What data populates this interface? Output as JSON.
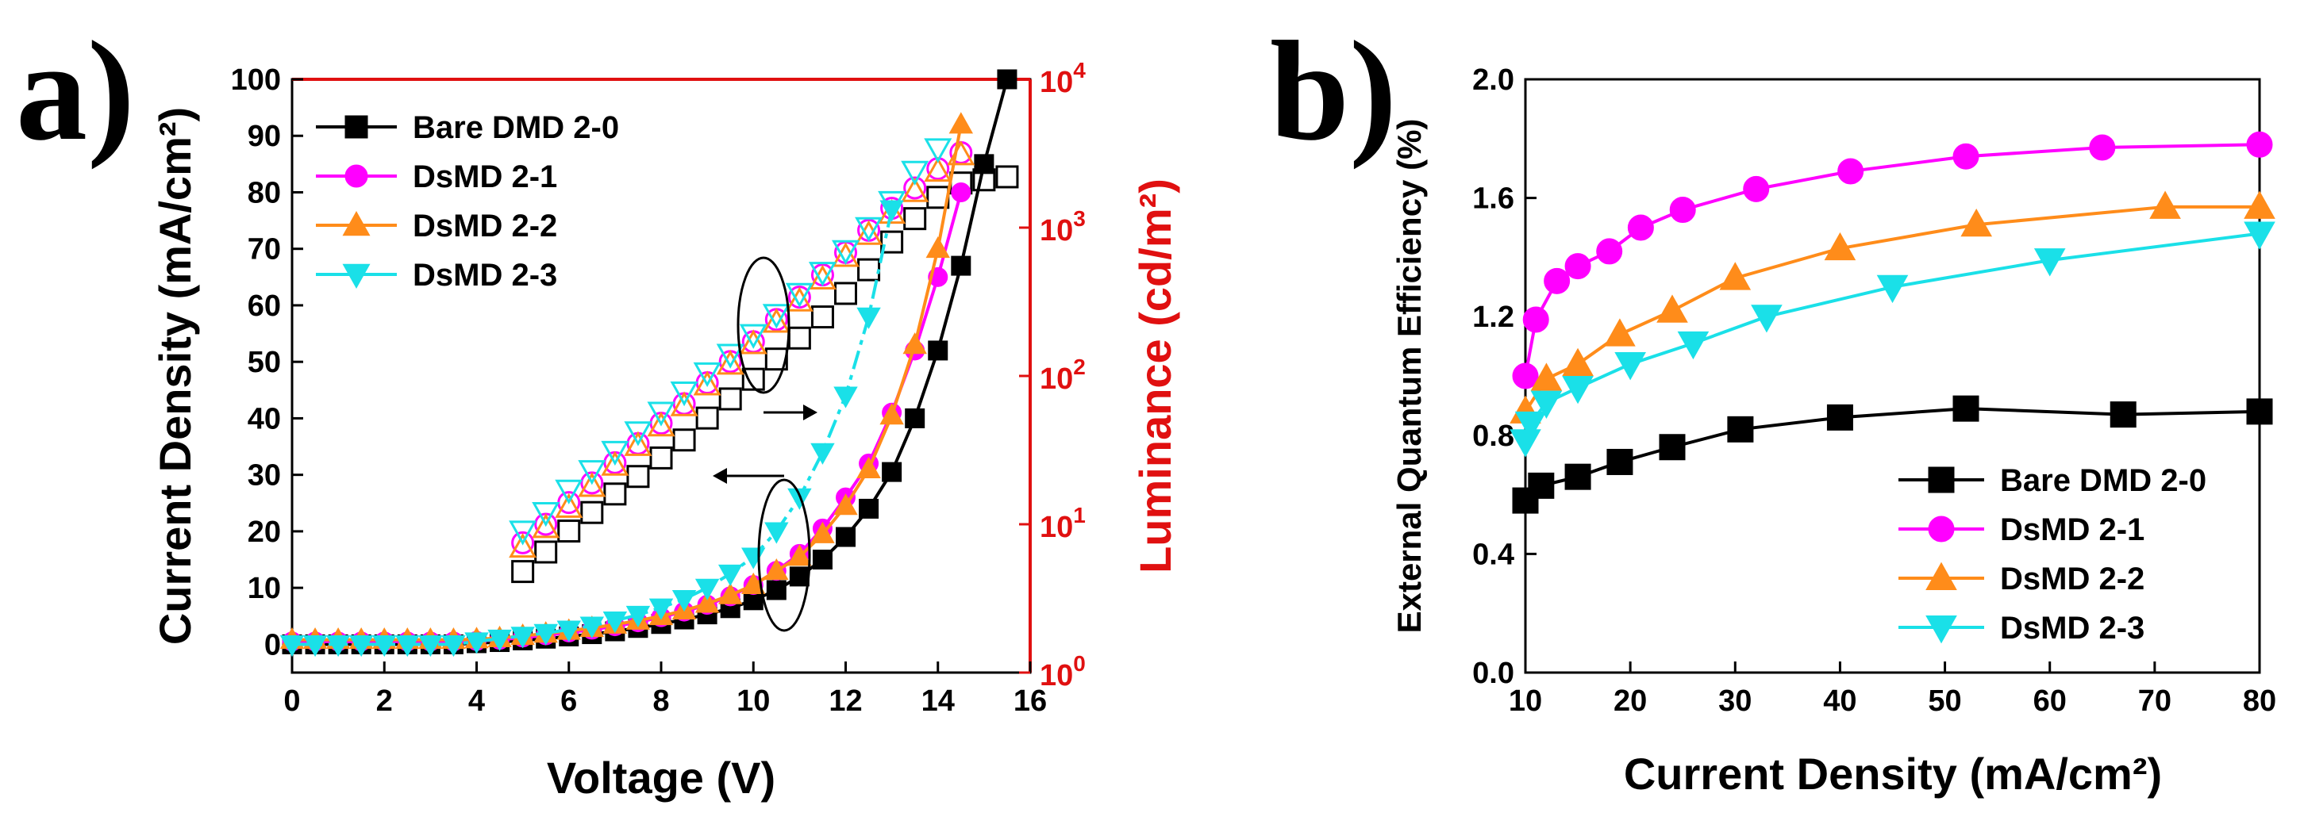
{
  "chart_data": [
    {
      "panel_label": "a)",
      "type": "scatter",
      "xlabel": "Voltage (V)",
      "ylabel_left": "Current Density (mA/cm²)",
      "ylabel_right": "Luminance (cd/m²)",
      "xlim": [
        0,
        16
      ],
      "ylim_left": [
        -5,
        100
      ],
      "ylim_right_log10": [
        0,
        4
      ],
      "x_ticks": [
        "0",
        "2",
        "4",
        "6",
        "8",
        "10",
        "12",
        "14",
        "16"
      ],
      "y_left_ticks": [
        "0",
        "10",
        "20",
        "30",
        "40",
        "50",
        "60",
        "70",
        "80",
        "90",
        "100"
      ],
      "y_right_ticks": [
        {
          "base": "10",
          "exp": "0"
        },
        {
          "base": "10",
          "exp": "1"
        },
        {
          "base": "10",
          "exp": "2"
        },
        {
          "base": "10",
          "exp": "3"
        },
        {
          "base": "10",
          "exp": "4"
        }
      ],
      "legend": [
        "Bare DMD 2-0",
        "DsMD 2-1",
        "DsMD 2-2",
        "DsMD 2-3"
      ],
      "legend_position": "top-left",
      "annotations": [
        "circle around luminance curves with arrow pointing to right axis",
        "circle around current density curves with arrow pointing to left axis"
      ],
      "series": [
        {
          "name": "Bare DMD 2-0",
          "color": "#000000",
          "marker": "square",
          "line": "solid",
          "current_density": {
            "x": [
              0,
              0.5,
              1,
              1.5,
              2,
              2.5,
              3,
              3.5,
              4,
              4.5,
              5,
              5.5,
              6,
              6.5,
              7,
              7.5,
              8,
              8.5,
              9,
              9.5,
              10,
              10.5,
              11,
              11.5,
              12,
              12.5,
              13,
              13.5,
              14,
              14.5,
              15,
              15.5
            ],
            "y": [
              0,
              0,
              0,
              0,
              0,
              0,
              0,
              0,
              0.2,
              0.4,
              0.7,
              1,
              1.4,
              1.8,
              2.3,
              2.9,
              3.6,
              4.4,
              5.3,
              6.4,
              7.8,
              9.6,
              12,
              15,
              19,
              24,
              30.5,
              40,
              52,
              67,
              85,
              100
            ]
          },
          "luminance": {
            "x": [
              5,
              5.5,
              6,
              6.5,
              7,
              7.5,
              8,
              8.5,
              9,
              9.5,
              10,
              10.5,
              11,
              11.5,
              12,
              12.5,
              13,
              13.5,
              14,
              14.5,
              15,
              15.5
            ],
            "y": [
              4.8,
              6.5,
              9,
              12,
              16,
              21,
              28,
              37,
              52,
              70,
              95,
              130,
              180,
              250,
              360,
              520,
              800,
              1150,
              1600,
              2000,
              2100,
              2200
            ]
          }
        },
        {
          "name": "DsMD 2-1",
          "color": "#ff00ff",
          "marker": "circle",
          "line": "solid",
          "current_density": {
            "x": [
              0,
              0.5,
              1,
              1.5,
              2,
              2.5,
              3,
              3.5,
              4,
              4.5,
              5,
              5.5,
              6,
              6.5,
              7,
              7.5,
              8,
              8.5,
              9,
              9.5,
              10,
              10.5,
              11,
              11.5,
              12,
              12.5,
              13,
              13.5,
              14,
              14.5
            ],
            "y": [
              0.5,
              0.5,
              0.5,
              0.5,
              0.5,
              0.5,
              0.5,
              0.5,
              0.6,
              0.8,
              1.2,
              1.6,
              2.1,
              2.6,
              3.2,
              3.9,
              4.8,
              5.8,
              7,
              8.5,
              10.5,
              13,
              16,
              20.5,
              26,
              32,
              41,
              52,
              65,
              80
            ]
          },
          "luminance": {
            "x": [
              5,
              5.5,
              6,
              6.5,
              7,
              7.5,
              8,
              8.5,
              9,
              9.5,
              10,
              10.5,
              11,
              11.5,
              12,
              12.5,
              13,
              13.5,
              14,
              14.5
            ],
            "y": [
              7.5,
              10,
              14,
              19,
              26,
              35,
              48,
              65,
              90,
              125,
              170,
              240,
              340,
              480,
              680,
              960,
              1350,
              1850,
              2500,
              3200
            ]
          }
        },
        {
          "name": "DsMD 2-2",
          "color": "#ff8c1a",
          "marker": "triangle-up",
          "line": "solid",
          "current_density": {
            "x": [
              0,
              0.5,
              1,
              1.5,
              2,
              2.5,
              3,
              3.5,
              4,
              4.5,
              5,
              5.5,
              6,
              6.5,
              7,
              7.5,
              8,
              8.5,
              9,
              9.5,
              10,
              10.5,
              11,
              11.5,
              12,
              12.5,
              13,
              13.5,
              14,
              14.5
            ],
            "y": [
              0.8,
              0.8,
              0.8,
              0.8,
              0.8,
              0.8,
              0.8,
              0.8,
              0.9,
              1.1,
              1.5,
              1.9,
              2.4,
              2.9,
              3.5,
              4.2,
              5,
              6,
              7.2,
              8.7,
              10.5,
              13,
              15.5,
              19.5,
              24.5,
              31,
              40.5,
              53,
              70,
              92
            ]
          },
          "luminance": {
            "x": [
              5,
              5.5,
              6,
              6.5,
              7,
              7.5,
              8,
              8.5,
              9,
              9.5,
              10,
              10.5,
              11,
              11.5,
              12,
              12.5,
              13,
              13.5,
              14,
              14.5
            ],
            "y": [
              7,
              9.5,
              13,
              18,
              25,
              34,
              46,
              63,
              87,
              120,
              165,
              230,
              320,
              450,
              640,
              900,
              1250,
              1750,
              2400,
              3100
            ]
          }
        },
        {
          "name": "DsMD 2-3",
          "color": "#1ae0e8",
          "marker": "triangle-down",
          "line": "dash-dot",
          "current_density": {
            "x": [
              0,
              0.5,
              1,
              1.5,
              2,
              2.5,
              3,
              3.5,
              4,
              4.5,
              5,
              5.5,
              6,
              6.5,
              7,
              7.5,
              8,
              8.5,
              9,
              9.5,
              10,
              10.5,
              11,
              11.5,
              12,
              12.5,
              13
            ],
            "y": [
              0,
              0,
              0,
              0,
              0,
              0,
              0,
              0,
              0.5,
              1,
              1.5,
              2,
              2.6,
              3.3,
              4.2,
              5.2,
              6.5,
              8,
              10,
              12.5,
              15.5,
              20,
              26,
              34,
              44,
              58,
              77
            ]
          },
          "luminance": {
            "x": [
              5,
              5.5,
              6,
              6.5,
              7,
              7.5,
              8,
              8.5,
              9,
              9.5,
              10,
              10.5,
              11,
              11.5,
              12,
              12.5,
              13,
              13.5,
              14
            ],
            "y": [
              9,
              12,
              17,
              23,
              31,
              42,
              57,
              78,
              105,
              140,
              190,
              260,
              360,
              500,
              700,
              1000,
              1500,
              2400,
              3400
            ]
          }
        }
      ]
    },
    {
      "panel_label": "b)",
      "type": "line",
      "xlabel": "Current Density (mA/cm²)",
      "ylabel": "External Quantum Efficiency (%)",
      "xlim": [
        10,
        80
      ],
      "ylim": [
        0,
        2.0
      ],
      "x_ticks": [
        "10",
        "20",
        "30",
        "40",
        "50",
        "60",
        "70",
        "80"
      ],
      "y_ticks": [
        "0.0",
        "0.4",
        "0.8",
        "1.2",
        "1.6",
        "2.0"
      ],
      "legend": [
        "Bare DMD 2-0",
        "DsMD 2-1",
        "DsMD 2-2",
        "DsMD 2-3"
      ],
      "legend_position": "bottom-right",
      "series": [
        {
          "name": "Bare DMD 2-0",
          "color": "#000000",
          "marker": "square",
          "x": [
            10,
            11.5,
            15,
            19,
            24,
            30.5,
            40,
            52,
            67,
            80
          ],
          "y": [
            0.58,
            0.63,
            0.66,
            0.71,
            0.76,
            0.82,
            0.86,
            0.89,
            0.87,
            0.88
          ]
        },
        {
          "name": "DsMD 2-1",
          "color": "#ff00ff",
          "marker": "circle",
          "x": [
            10,
            11,
            13,
            15,
            18,
            21,
            25,
            32,
            41,
            52,
            65,
            80
          ],
          "y": [
            1.0,
            1.19,
            1.32,
            1.37,
            1.42,
            1.5,
            1.56,
            1.63,
            1.69,
            1.74,
            1.77,
            1.78
          ]
        },
        {
          "name": "DsMD 2-2",
          "color": "#ff8c1a",
          "marker": "triangle-up",
          "x": [
            10,
            12,
            15,
            19,
            24,
            30,
            40,
            53,
            71,
            80
          ],
          "y": [
            0.88,
            0.99,
            1.04,
            1.14,
            1.22,
            1.33,
            1.43,
            1.51,
            1.57,
            1.57
          ]
        },
        {
          "name": "DsMD 2-3",
          "color": "#1ae0e8",
          "marker": "triangle-down",
          "x": [
            10,
            10.5,
            12,
            15,
            20,
            26,
            33,
            45,
            60,
            80
          ],
          "y": [
            0.78,
            0.84,
            0.91,
            0.96,
            1.04,
            1.11,
            1.2,
            1.3,
            1.39,
            1.48
          ]
        }
      ]
    }
  ]
}
